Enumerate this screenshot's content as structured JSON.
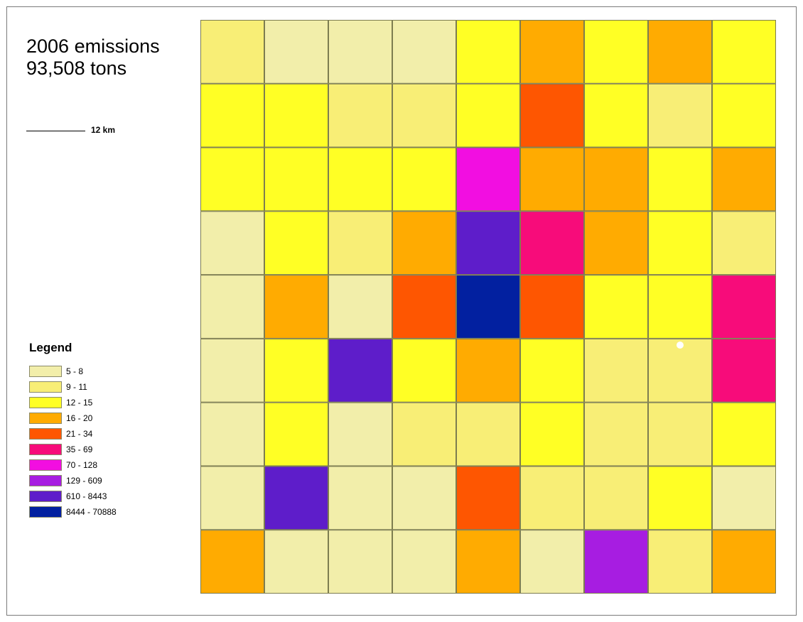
{
  "title": {
    "line1": "2006 emissions",
    "line2": "93,508 tons"
  },
  "scale": {
    "label": "12 km"
  },
  "legend": {
    "title": "Legend",
    "classes": [
      {
        "label": "5 - 8",
        "color": "#f2eeaa"
      },
      {
        "label": "9 - 11",
        "color": "#f8ee76"
      },
      {
        "label": "12 - 15",
        "color": "#ffff25"
      },
      {
        "label": "16 - 20",
        "color": "#ffab01"
      },
      {
        "label": "21 - 34",
        "color": "#fe5601"
      },
      {
        "label": "35 - 69",
        "color": "#f70c7a"
      },
      {
        "label": "70 - 128",
        "color": "#f20ee1"
      },
      {
        "label": "129 - 609",
        "color": "#a71de1"
      },
      {
        "label": "610 - 8443",
        "color": "#5e1dca"
      },
      {
        "label": "8444 - 70888",
        "color": "#0220a0"
      }
    ]
  },
  "grid": {
    "rows": 9,
    "cols": 9,
    "class_index": [
      [
        1,
        0,
        0,
        0,
        2,
        3,
        2,
        3,
        2
      ],
      [
        2,
        2,
        1,
        1,
        2,
        4,
        2,
        1,
        2
      ],
      [
        2,
        2,
        2,
        2,
        6,
        3,
        3,
        2,
        3
      ],
      [
        0,
        2,
        1,
        3,
        8,
        5,
        3,
        2,
        1
      ],
      [
        0,
        3,
        0,
        4,
        9,
        4,
        2,
        2,
        5
      ],
      [
        0,
        2,
        8,
        2,
        3,
        2,
        1,
        1,
        5
      ],
      [
        0,
        2,
        0,
        1,
        1,
        2,
        1,
        1,
        2
      ],
      [
        0,
        8,
        0,
        0,
        4,
        1,
        1,
        2,
        0
      ],
      [
        3,
        0,
        0,
        0,
        3,
        0,
        7,
        1,
        3
      ]
    ]
  }
}
